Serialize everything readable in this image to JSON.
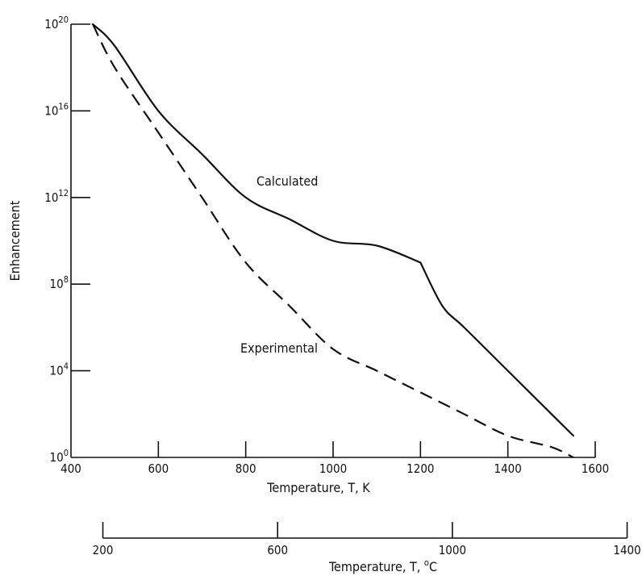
{
  "chart_data": {
    "type": "line",
    "title": "",
    "xlabel": "Temperature, T, K",
    "ylabel": "Enhancement",
    "xlim": [
      400,
      1600
    ],
    "x_ticks": [
      "400",
      "600",
      "800",
      "1000",
      "1200",
      "1400",
      "1600"
    ],
    "y_scale": "log",
    "ylim": [
      1,
      1e+20
    ],
    "y_ticks": [
      {
        "base": "10",
        "exp": "0"
      },
      {
        "base": "10",
        "exp": "4"
      },
      {
        "base": "10",
        "exp": "8"
      },
      {
        "base": "10",
        "exp": "12"
      },
      {
        "base": "10",
        "exp": "16"
      },
      {
        "base": "10",
        "exp": "20"
      }
    ],
    "secondary_x_axis": {
      "label_main": "Temperature, T, ",
      "label_sup": "o",
      "label_unit": "C",
      "ticks": [
        "200",
        "600",
        "1000",
        "1400"
      ]
    },
    "series": [
      {
        "name": "Calculated",
        "style": "solid",
        "x": [
          450,
          500,
          600,
          700,
          800,
          900,
          1000,
          1100,
          1200,
          1200,
          1250,
          1300,
          1400,
          1500,
          1550
        ],
        "y": [
          1e+20,
          1e+19,
          1e+16,
          100000000000000.0,
          1000000000000.0,
          100000000000.0,
          10000000000.0,
          6000000000.0,
          1000000000.0,
          1000000000.0,
          10000000.0,
          1000000.0,
          10000.0,
          100.0,
          10.0
        ]
      },
      {
        "name": "Experimental",
        "style": "dashed",
        "x": [
          450,
          500,
          600,
          700,
          800,
          900,
          1000,
          1100,
          1200,
          1300,
          1400,
          1500,
          1550
        ],
        "y": [
          1e+20,
          1e+18,
          1000000000000000.0,
          1000000000000.0,
          1000000000.0,
          10000000.0,
          100000.0,
          10000.0,
          1000.0,
          100.0,
          10.0,
          3.0,
          1.0
        ]
      }
    ]
  }
}
